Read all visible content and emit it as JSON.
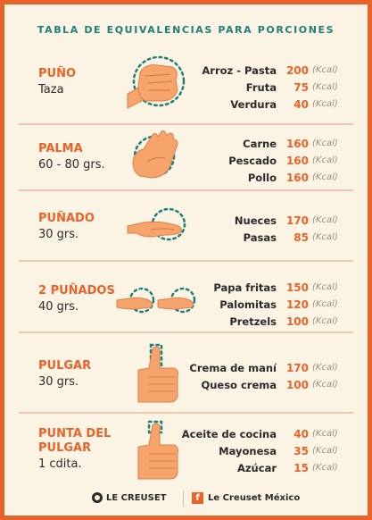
{
  "title": "TABLA DE EQUIVALENCIAS PARA PORCIONES",
  "unit": "(Kcal)",
  "sections": [
    {
      "name": [
        "PUÑO"
      ],
      "sub": "Taza",
      "icon": "fist-icon",
      "rows": [
        {
          "food": "Arroz - Pasta",
          "val": "200"
        },
        {
          "food": "Fruta",
          "val": "75"
        },
        {
          "food": "Verdura",
          "val": "40"
        }
      ]
    },
    {
      "name": [
        "PALMA"
      ],
      "sub": "60 - 80 grs.",
      "icon": "palm-icon",
      "rows": [
        {
          "food": "Carne",
          "val": "160"
        },
        {
          "food": "Pescado",
          "val": "160"
        },
        {
          "food": "Pollo",
          "val": "160"
        }
      ]
    },
    {
      "name": [
        "PUÑADO"
      ],
      "sub": "30 grs.",
      "icon": "handful-icon",
      "rows": [
        {
          "food": "Nueces",
          "val": "170"
        },
        {
          "food": "Pasas",
          "val": "85"
        }
      ]
    },
    {
      "name": [
        "2 PUÑADOS"
      ],
      "sub": "40 grs.",
      "icon": "two-handfuls-icon",
      "rows": [
        {
          "food": "Papa fritas",
          "val": "150"
        },
        {
          "food": "Palomitas",
          "val": "120"
        },
        {
          "food": "Pretzels",
          "val": "100"
        }
      ]
    },
    {
      "name": [
        "PULGAR"
      ],
      "sub": "30 grs.",
      "icon": "thumb-icon",
      "rows": [
        {
          "food": "Crema de maní",
          "val": "170"
        },
        {
          "food": "Queso crema",
          "val": "100"
        }
      ]
    },
    {
      "name": [
        "PUNTA DEL",
        "PULGAR"
      ],
      "sub": "1 cdita.",
      "icon": "thumb-tip-icon",
      "rows": [
        {
          "food": "Aceite de cocina",
          "val": "40"
        },
        {
          "food": "Mayonesa",
          "val": "35"
        },
        {
          "food": "Azúcar",
          "val": "15"
        }
      ]
    }
  ],
  "footer": {
    "brand": "LE CREUSET",
    "facebook": "Le Creuset México"
  },
  "colors": {
    "orange": "#e8632a",
    "teal": "#1f7f79",
    "skin": "#f6a46b",
    "background": "#fbf3e3"
  }
}
